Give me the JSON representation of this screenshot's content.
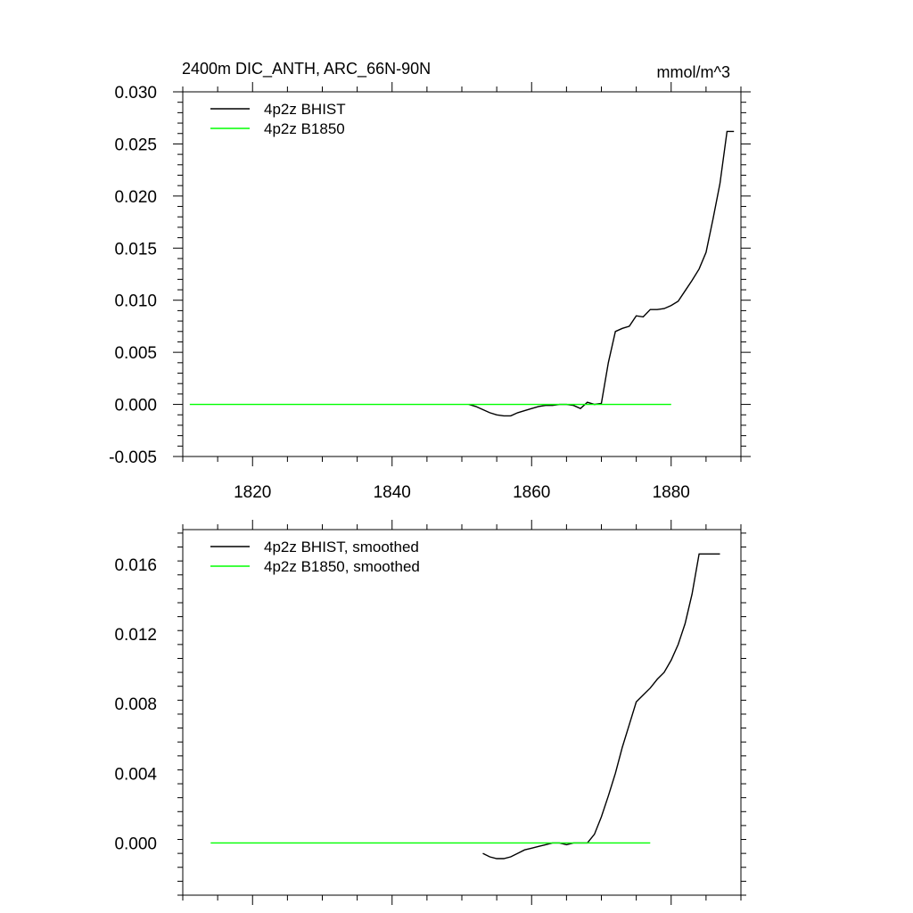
{
  "chart_data": [
    {
      "type": "line",
      "title": "2400m DIC_ANTH, ARC_66N-90N",
      "units": "mmol/m^3",
      "xlim": [
        1810,
        1890
      ],
      "ylim": [
        -0.005,
        0.03
      ],
      "xticks": [
        1820,
        1840,
        1860,
        1880
      ],
      "xtick_labels": [
        "1820",
        "1840",
        "1860",
        "1880"
      ],
      "yticks": [
        -0.005,
        0.0,
        0.005,
        0.01,
        0.015,
        0.02,
        0.025,
        0.03
      ],
      "ytick_labels": [
        "-0.005",
        "0.000",
        "0.005",
        "0.010",
        "0.015",
        "0.020",
        "0.025",
        "0.030"
      ],
      "legend_position": "top-left",
      "series": [
        {
          "name": "4p2z BHIST",
          "color": "#000000",
          "x": [
            1851,
            1852,
            1853,
            1854,
            1855,
            1856,
            1857,
            1858,
            1859,
            1860,
            1861,
            1862,
            1863,
            1864,
            1865,
            1866,
            1867,
            1868,
            1869,
            1870,
            1871,
            1872,
            1873,
            1874,
            1875,
            1876,
            1877,
            1878,
            1879,
            1880,
            1881,
            1882,
            1883,
            1884,
            1885,
            1886,
            1887,
            1888,
            1889
          ],
          "y": [
            0.0,
            -0.0002,
            -0.0005,
            -0.0008,
            -0.001,
            -0.0011,
            -0.0011,
            -0.0008,
            -0.0006,
            -0.0004,
            -0.0002,
            -0.0001,
            -0.0001,
            0.0,
            0.0,
            -0.0001,
            -0.0004,
            0.0002,
            0.0,
            0.0001,
            0.004,
            0.007,
            0.0073,
            0.0075,
            0.0085,
            0.0084,
            0.0091,
            0.0091,
            0.0092,
            0.0095,
            0.0099,
            0.0109,
            0.0119,
            0.013,
            0.0146,
            0.0178,
            0.0212,
            0.0262,
            0.0262
          ]
        },
        {
          "name": "4p2z B1850",
          "color": "#00ff00",
          "x": [
            1811,
            1880
          ],
          "y": [
            0.0,
            0.0
          ]
        }
      ]
    },
    {
      "type": "line",
      "title": "",
      "xlim": [
        1810,
        1890
      ],
      "ylim": [
        -0.003,
        0.018
      ],
      "xticks": [
        1820,
        1840,
        1860,
        1880
      ],
      "yticks": [
        0.0,
        0.004,
        0.008,
        0.012,
        0.016
      ],
      "ytick_labels": [
        "0.000",
        "0.004",
        "0.008",
        "0.012",
        "0.016"
      ],
      "legend_position": "top-left",
      "series": [
        {
          "name": "4p2z BHIST, smoothed",
          "color": "#000000",
          "x": [
            1853,
            1854,
            1855,
            1856,
            1857,
            1858,
            1859,
            1860,
            1861,
            1862,
            1863,
            1864,
            1865,
            1866,
            1867,
            1868,
            1869,
            1870,
            1871,
            1872,
            1873,
            1874,
            1875,
            1876,
            1877,
            1878,
            1879,
            1880,
            1881,
            1882,
            1883,
            1884,
            1885,
            1886,
            1887
          ],
          "y": [
            -0.0006,
            -0.0008,
            -0.0009,
            -0.0009,
            -0.0008,
            -0.0006,
            -0.0004,
            -0.0003,
            -0.0002,
            -0.0001,
            0.0,
            0.0,
            -0.0001,
            0.0,
            0.0,
            0.0,
            0.0005,
            0.0015,
            0.0027,
            0.004,
            0.0055,
            0.0068,
            0.0081,
            0.0085,
            0.0089,
            0.0094,
            0.0098,
            0.0105,
            0.0114,
            0.0126,
            0.0143,
            0.0166,
            0.0166,
            0.0166,
            0.0166
          ]
        },
        {
          "name": "4p2z B1850, smoothed",
          "color": "#00ff00",
          "x": [
            1814,
            1877
          ],
          "y": [
            0.0,
            0.0
          ]
        }
      ]
    }
  ]
}
